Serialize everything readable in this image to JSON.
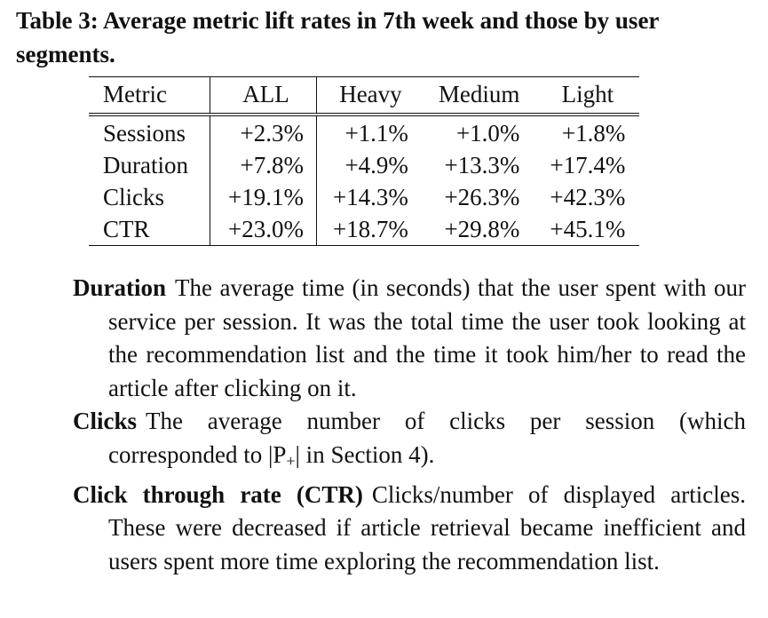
{
  "caption": "Table 3: Average metric lift rates in 7th week and those by user segments.",
  "table": {
    "headers": [
      "Metric",
      "ALL",
      "Heavy",
      "Medium",
      "Light"
    ],
    "rows": [
      [
        "Sessions",
        "+2.3%",
        "+1.1%",
        "+1.0%",
        "+1.8%"
      ],
      [
        "Duration",
        "+7.8%",
        "+4.9%",
        "+13.3%",
        "+17.4%"
      ],
      [
        "Clicks",
        "+19.1%",
        "+14.3%",
        "+26.3%",
        "+42.3%"
      ],
      [
        "CTR",
        "+23.0%",
        "+18.7%",
        "+29.8%",
        "+45.1%"
      ]
    ]
  },
  "definitions": [
    {
      "term": "Duration",
      "text": "The average time (in seconds) that the user spent with our service per session. It was the total time the user took looking at the recommendation list and the time it took him/her to read the article after clicking on it."
    },
    {
      "term": "Clicks",
      "text_before": "The average number of clicks per session (which corresponded to |P",
      "subscript": "+",
      "text_after": "| in Section 4)."
    },
    {
      "term": "Click through rate (CTR)",
      "text": "Clicks/number of displayed articles. These were decreased if article retrieval became inefficient and users spent more time exploring the recommendation list."
    }
  ]
}
